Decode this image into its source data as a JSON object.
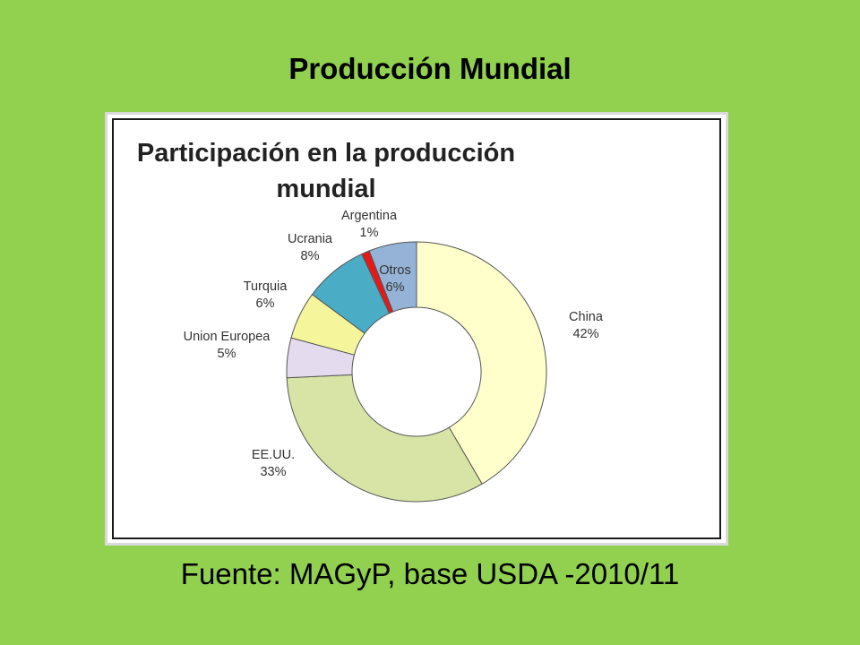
{
  "slide": {
    "title": "Producción Mundial",
    "source": "Fuente: MAGyP, base USDA -2010/11"
  },
  "chart_data": {
    "type": "pie",
    "variant": "donut",
    "title_lines": [
      "Participación en la producción",
      "mundial"
    ],
    "slices": [
      {
        "name": "China",
        "value": 42,
        "label": "42%",
        "color": "#ffffcc"
      },
      {
        "name": "EE.UU.",
        "value": 33,
        "label": "33%",
        "color": "#d7e4a5"
      },
      {
        "name": "Union Europea",
        "value": 5,
        "label": "5%",
        "color": "#e5dbee"
      },
      {
        "name": "Turquia",
        "value": 6,
        "label": "6%",
        "color": "#f5f59b"
      },
      {
        "name": "Ucrania",
        "value": 8,
        "label": "8%",
        "color": "#4bacc6"
      },
      {
        "name": "Argentina",
        "value": 1,
        "label": "1%",
        "color": "#e61919"
      },
      {
        "name": "Otros",
        "value": 6,
        "label": "6%",
        "color": "#95b3d7"
      }
    ],
    "start": "12 o'clock",
    "direction": "clockwise"
  }
}
